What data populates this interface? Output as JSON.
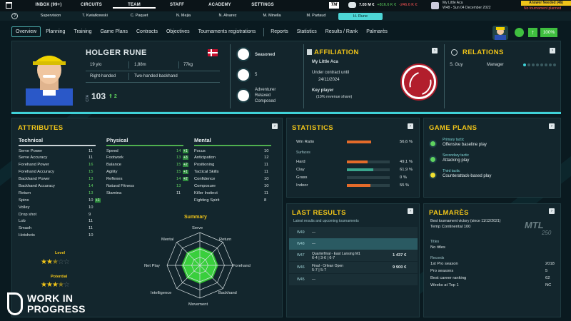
{
  "topnav": {
    "items": [
      "INBOX (99+)",
      "CIRCUITS",
      "TEAM",
      "STAFF",
      "ACADEMY",
      "SETTINGS"
    ],
    "active": "TEAM"
  },
  "brand": {
    "tm": "TM"
  },
  "finance": {
    "money": "7.03 M €",
    "gain": "+816.6 K €",
    "loss": "-246.6 K €"
  },
  "club": {
    "name": "My Little Aca",
    "date": "W48 - Sun 04 December 2022"
  },
  "alerts": {
    "answer": "Answer Needed (46)",
    "tournament": "No tournament planned"
  },
  "subnav": {
    "items": [
      "Supervision",
      "T. Kwiatkowski",
      "C. Paquet",
      "N. Mejia",
      "N. Alvarez",
      "M. Minella",
      "M. Partaud",
      "H. Rune"
    ],
    "selected": "H. Rune"
  },
  "tabs": [
    "Overview",
    "Planning",
    "Training",
    "Game Plans",
    "Contracts",
    "Objectives",
    "Tournaments registrations",
    "Reports",
    "Statistics",
    "Results / Rank",
    "Palmarès"
  ],
  "status": {
    "pct": "100%"
  },
  "player": {
    "name": "HOLGER RUNE",
    "age": "19 y/o",
    "height": "1,88m",
    "weight": "77kg",
    "hand": "Right-handed",
    "backhand": "Two-handed backhand",
    "cta_label": "CTA",
    "cta": "103",
    "cta_delta": "2",
    "status": "Seasoned",
    "number": "5",
    "traits": [
      "Adventurer",
      "Relaxed",
      "Composed"
    ]
  },
  "affiliation": {
    "title": "AFFILIATION",
    "club": "My Little Aca",
    "contract_label": "Under contract until",
    "contract_date": "24/11/2024",
    "key_label": "Key player",
    "key_detail": "(10% revenue share)"
  },
  "relations": {
    "title": "RELATIONS",
    "name": "S. Guy",
    "role": "Manager",
    "level": 1
  },
  "attributes": {
    "title": "ATTRIBUTES",
    "technical": {
      "title": "Technical",
      "rows": [
        {
          "n": "Serve Power",
          "v": "11"
        },
        {
          "n": "Serve Accuracy",
          "v": "11"
        },
        {
          "n": "Forehand Power",
          "v": "16"
        },
        {
          "n": "Forehand Accuracy",
          "v": "15"
        },
        {
          "n": "Backhand Power",
          "v": "13"
        },
        {
          "n": "Backhand Accuracy",
          "v": "14"
        },
        {
          "n": "Return",
          "v": "13"
        },
        {
          "n": "Spins",
          "v": "10",
          "plus": "+1"
        },
        {
          "n": "Volley",
          "v": "10"
        },
        {
          "n": "Drop shot",
          "v": "9"
        },
        {
          "n": "Lob",
          "v": "11"
        },
        {
          "n": "Smash",
          "v": "11"
        },
        {
          "n": "Hotshots",
          "v": "10"
        }
      ]
    },
    "physical": {
      "title": "Physical",
      "rows": [
        {
          "n": "Speed",
          "v": "14",
          "plus": "+1"
        },
        {
          "n": "Footwork",
          "v": "13",
          "plus": "+3"
        },
        {
          "n": "Balance",
          "v": "15",
          "plus": "+2"
        },
        {
          "n": "Agility",
          "v": "15",
          "plus": "+1"
        },
        {
          "n": "Reflexes",
          "v": "14",
          "plus": "+2"
        },
        {
          "n": "Natural Fitness",
          "v": "13"
        },
        {
          "n": "Stamina",
          "v": "11"
        }
      ]
    },
    "mental": {
      "title": "Mental",
      "rows": [
        {
          "n": "Focus",
          "v": "10"
        },
        {
          "n": "Anticipation",
          "v": "12"
        },
        {
          "n": "Positioning",
          "v": "11"
        },
        {
          "n": "Tactical Skills",
          "v": "11"
        },
        {
          "n": "Confidence",
          "v": "10"
        },
        {
          "n": "Composure",
          "v": "10"
        },
        {
          "n": "Killer Instinct",
          "v": "11"
        },
        {
          "n": "Fighting Spirit",
          "v": "8"
        }
      ]
    },
    "summary_title": "Summary",
    "radar_axes": [
      "Serve",
      "Return",
      "Forehand",
      "Backhand",
      "Movement",
      "Intelligence",
      "Net Play",
      "Mental"
    ],
    "level_label": "Level",
    "level_stars": 2.5,
    "potential_label": "Potential",
    "potential_stars": 3.5
  },
  "statistics": {
    "title": "STATISTICS",
    "win_label": "Win Ratio",
    "win_value": "56,6 %",
    "win": 0.566,
    "surfaces_label": "Surfaces",
    "surfaces": [
      {
        "n": "Hard",
        "v": "49,1 %",
        "f": 0.491,
        "c": "#e36b2a"
      },
      {
        "n": "Clay",
        "v": "61,9 %",
        "f": 0.619,
        "c": "#3aa58c"
      },
      {
        "n": "Grass",
        "v": "0 %",
        "f": 0,
        "c": "#e36b2a"
      },
      {
        "n": "Indoor",
        "v": "55 %",
        "f": 0.55,
        "c": "#e36b2a"
      }
    ]
  },
  "gameplans": {
    "title": "GAME PLANS",
    "items": [
      {
        "k": "Primary tactic",
        "v": "Offensive baseline play"
      },
      {
        "k": "Secondary tactic",
        "v": "Attacking play"
      },
      {
        "k": "Third tactic",
        "v": "Counterattack-based play"
      }
    ]
  },
  "lastresults": {
    "title": "LAST RESULTS",
    "subtitle": "Latest results and upcoming tournaments",
    "rows": [
      {
        "w": "W49",
        "t1": "—",
        "t2": "",
        "p": ""
      },
      {
        "w": "W48",
        "t1": "—",
        "t2": "",
        "p": ""
      },
      {
        "w": "W47",
        "t1": "Quarterfinal - East Lansing M1",
        "t2": "6-4 | 3-6 | 6-7",
        "p": "1 437 €"
      },
      {
        "w": "W46",
        "t1": "Final - Orlean Open",
        "t2": "5-7 | 5-7",
        "p": "9 900 €"
      },
      {
        "w": "W45",
        "t1": "—",
        "t2": "",
        "p": ""
      }
    ]
  },
  "palmares": {
    "title": "PALMARÈS",
    "best_label": "Best tournament victory (since 11/12/2021)",
    "best_value": "Temp Continental 100",
    "titles_label": "Titles",
    "titles_value": "No titles",
    "records_label": "Records",
    "records": [
      {
        "n": "1st Pro season",
        "v": "2018"
      },
      {
        "n": "Pro seasons",
        "v": "5"
      },
      {
        "n": "Best career ranking",
        "v": "62"
      },
      {
        "n": "Weeks at Top 1",
        "v": "NC"
      }
    ],
    "logo": "MTL",
    "logo_sub": "250"
  },
  "watermark": {
    "line1": "WORK IN",
    "line2": "PROGRESS"
  }
}
